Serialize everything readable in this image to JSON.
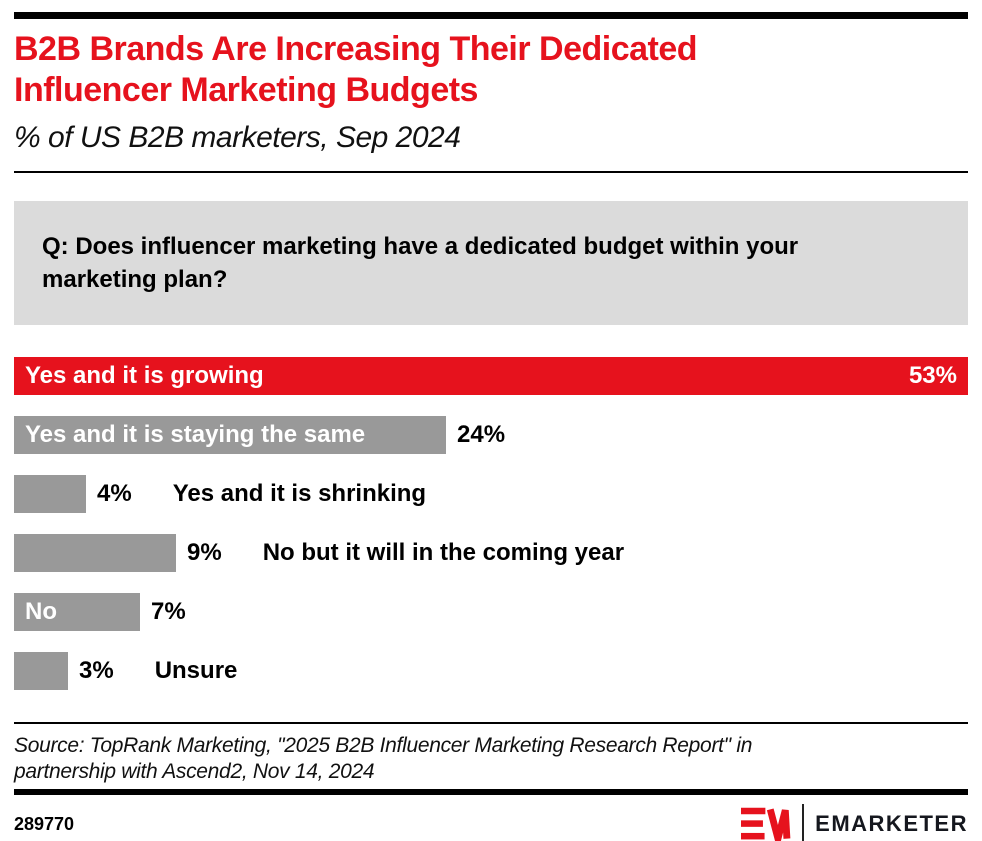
{
  "header": {
    "title_lines": [
      "B2B Brands Are Increasing Their Dedicated",
      "Influencer Marketing Budgets"
    ],
    "subtitle": "% of US B2B marketers, Sep 2024"
  },
  "question_lines": [
    "Q: Does influencer marketing have a dedicated budget within your",
    "marketing plan?"
  ],
  "chart_data": {
    "type": "bar",
    "orientation": "horizontal",
    "unit": "%",
    "xmax": 53,
    "grid": false,
    "legend": false,
    "rows": [
      {
        "category": "Yes and it is growing",
        "value": 53,
        "value_label": "53%",
        "color": "red",
        "category_position": "inside",
        "value_position": "inside"
      },
      {
        "category": "Yes and it is staying the same",
        "value": 24,
        "value_label": "24%",
        "color": "gray",
        "category_position": "inside",
        "value_position": "outside"
      },
      {
        "category": "Yes and it is shrinking",
        "value": 4,
        "value_label": "4%",
        "color": "gray",
        "category_position": "outside",
        "value_position": "outside"
      },
      {
        "category": "No but it will in the coming year",
        "value": 9,
        "value_label": "9%",
        "color": "gray",
        "category_position": "outside",
        "value_position": "outside"
      },
      {
        "category": "No",
        "value": 7,
        "value_label": "7%",
        "color": "gray",
        "category_position": "inside",
        "value_position": "outside"
      },
      {
        "category": "Unsure",
        "value": 3,
        "value_label": "3%",
        "color": "gray",
        "category_position": "outside",
        "value_position": "outside"
      }
    ]
  },
  "source_lines": [
    "Source: TopRank Marketing, \"2025 B2B Influencer Marketing Research Report\" in",
    "partnership with Ascend2, Nov 14, 2024"
  ],
  "footer": {
    "chart_id": "289770",
    "logo_text": "EMARKETER"
  },
  "colors": {
    "brand_red": "#E6121D",
    "bar_gray": "#999999",
    "question_bg": "#DBDBDB",
    "text_black": "#000000",
    "logo_dark": "#15171E"
  }
}
